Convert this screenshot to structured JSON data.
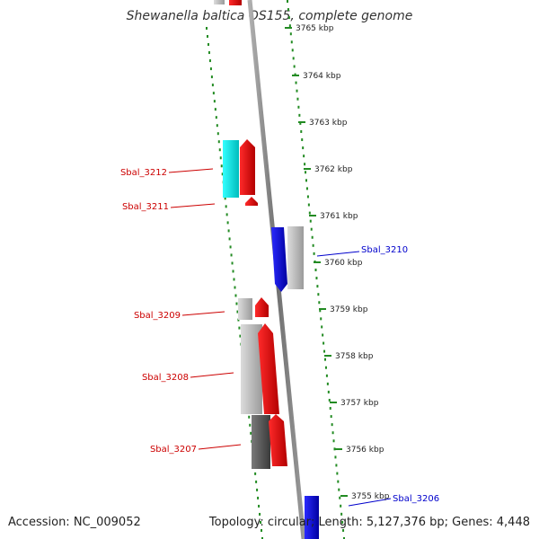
{
  "map": {
    "title": "Shewanella baltica OS155, complete genome",
    "accession": "Accession: NC_009052",
    "summary": "Topology: circular; Length: 5,127,376 bp; Genes: 4,448",
    "ticks": [
      "3765 kbp",
      "3764 kbp",
      "3763 kbp",
      "3762 kbp",
      "3761 kbp",
      "3760 kbp",
      "3759 kbp",
      "3758 kbp",
      "3757 kbp",
      "3756 kbp",
      "3755 kbp"
    ],
    "genes": [
      {
        "label": "Sbal_3212",
        "color": "#cc0000"
      },
      {
        "label": "Sbal_3211",
        "color": "#cc0000"
      },
      {
        "label": "Sbal_3210",
        "color": "#0000cc"
      },
      {
        "label": "Sbal_3209",
        "color": "#cc0000"
      },
      {
        "label": "Sbal_3208",
        "color": "#cc0000"
      },
      {
        "label": "Sbal_3207",
        "color": "#cc0000"
      },
      {
        "label": "Sbal_3206",
        "color": "#0000cc"
      }
    ],
    "colors": {
      "forward": "#ff0000",
      "reverse": "#0000ff",
      "tick": "#228b22",
      "backbone": "#808080",
      "gc_high": "#00ffff",
      "gc_light": "#c0c0c0",
      "gc_dark": "#606060"
    }
  }
}
